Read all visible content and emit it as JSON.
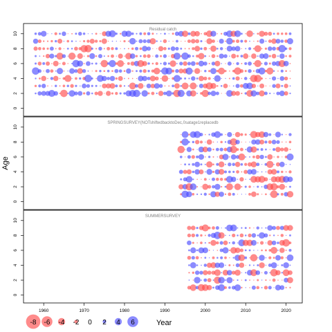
{
  "chart_data": {
    "type": "scatter",
    "ylabel": "Age",
    "xlabel": "Year",
    "xlim": [
      1955,
      2024
    ],
    "x_ticks": [
      1960,
      1970,
      1980,
      1990,
      2000,
      2010,
      2020
    ],
    "ylim": [
      -0.5,
      11
    ],
    "y_ticks": [
      0,
      2,
      4,
      6,
      8,
      10
    ],
    "colors": {
      "negative": "#ff4d4d",
      "positive": "#4d4dff",
      "axis": "#000000",
      "panel_title": "#808080"
    },
    "panels": [
      {
        "title": "Residual catch",
        "year_range": [
          1958,
          2021
        ],
        "ages": [
          2,
          3,
          4,
          5,
          6,
          7,
          8,
          9,
          10
        ],
        "residual_magnitude_range": [
          -3,
          3
        ]
      },
      {
        "title": "SPRINGSURVEY(NOTshiftedbacktoDec,0satage1replacedb",
        "year_range": [
          1994,
          2021
        ],
        "ages": [
          1,
          2,
          3,
          4,
          5,
          6,
          7,
          8,
          9
        ],
        "residual_magnitude_range": [
          -3,
          3
        ]
      },
      {
        "title": "SUMMERSURVEY",
        "year_range": [
          1996,
          2021
        ],
        "ages": [
          1,
          2,
          3,
          4,
          5,
          6,
          7,
          8,
          9
        ],
        "residual_magnitude_range": [
          -3,
          3
        ]
      }
    ],
    "legend": {
      "values": [
        -8,
        -6,
        -4,
        -2,
        0,
        2,
        4,
        6
      ],
      "labels": [
        "-8",
        "-6",
        "-4",
        "-2",
        "0",
        "2",
        "4",
        "6"
      ],
      "title": "Year"
    }
  }
}
